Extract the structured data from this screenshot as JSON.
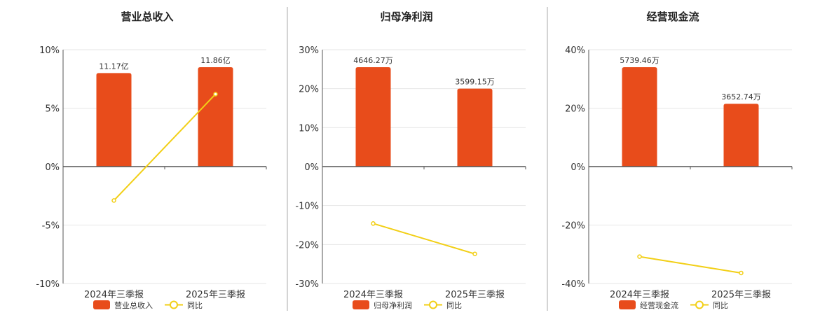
{
  "colors": {
    "bar": "#e84c1b",
    "line": "#f2cf16",
    "grid": "#e6e6e6",
    "axis": "#555555",
    "divider": "#aaaaaa"
  },
  "chart_data": [
    {
      "type": "bar",
      "title": "营业总收入",
      "categories": [
        "2024年三季报",
        "2025年三季报"
      ],
      "ylim": [
        -10,
        10
      ],
      "yticks": [
        10,
        5,
        0,
        -5,
        -10
      ],
      "tick_labels": [
        "10%",
        "5%",
        "0%",
        "-5%",
        "-10%"
      ],
      "bar_values": [
        8,
        8.5
      ],
      "bar_labels": [
        "11.17亿",
        "11.86亿"
      ],
      "line_values": [
        -2.9,
        6.2
      ],
      "legend": {
        "bar": "营业总收入",
        "line": "同比"
      }
    },
    {
      "type": "bar",
      "title": "归母净利润",
      "categories": [
        "2024年三季报",
        "2025年三季报"
      ],
      "ylim": [
        -30,
        30
      ],
      "yticks": [
        30,
        20,
        10,
        0,
        -10,
        -20,
        -30
      ],
      "tick_labels": [
        "30%",
        "20%",
        "10%",
        "0%",
        "-10%",
        "-20%",
        "-30%"
      ],
      "bar_values": [
        25.5,
        20
      ],
      "bar_labels": [
        "4646.27万",
        "3599.15万"
      ],
      "line_values": [
        -14.6,
        -22.4
      ],
      "legend": {
        "bar": "归母净利润",
        "line": "同比"
      }
    },
    {
      "type": "bar",
      "title": "经营现金流",
      "categories": [
        "2024年三季报",
        "2025年三季报"
      ],
      "ylim": [
        -40,
        40
      ],
      "yticks": [
        40,
        20,
        0,
        -20,
        -40
      ],
      "tick_labels": [
        "40%",
        "20%",
        "0%",
        "-20%",
        "-40%"
      ],
      "bar_values": [
        34,
        21.5
      ],
      "bar_labels": [
        "5739.46万",
        "3652.74万"
      ],
      "line_values": [
        -30.8,
        -36.4
      ],
      "legend": {
        "bar": "经营现金流",
        "line": "同比"
      }
    }
  ]
}
